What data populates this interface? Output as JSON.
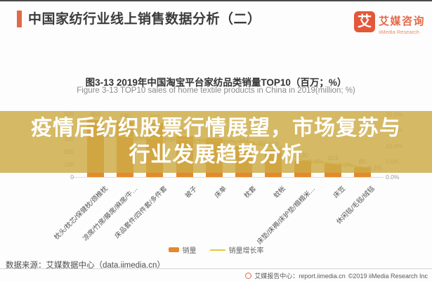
{
  "header": {
    "title": "中国家纺行业线上销售数据分析（二）",
    "logo_glyph": "艾",
    "logo_cn": "艾媒咨询",
    "logo_en": "iiMedia Research"
  },
  "figure": {
    "title_cn": "图3-13 2019年中国淘宝平台家纺品类销量TOP10（百万；%）",
    "title_en": "Figure 3-13 TOP10 sales of home textile products in China in 2019(million; %)"
  },
  "overlay": {
    "line1": "疫情后纺织股票行情展望，市场复苏与",
    "line2": "行业发展趋势分析"
  },
  "legend": {
    "bar_label": "销量",
    "line_label": "销量增长率"
  },
  "source": "数据来源：艾媒数据中心（data.iimedia.cn）",
  "footer": {
    "report_center": "艾媒报告中心：report.iimedia.cn",
    "copyright": "©2019  iiMedia Research Inc"
  },
  "colors": {
    "accent_orange": "#de6a48",
    "logo_orange": "#e4583a",
    "bar_orange": "#e6882c",
    "line_yellow": "#e9c73d",
    "overlay_band": "rgba(205,172,70,0.84)",
    "overlay_text": "#ffffff"
  },
  "chart_data": {
    "type": "bar",
    "title": "图3-13 2019年中国淘宝平台家纺品类销量TOP10（百万；%）",
    "subtitle": "Figure 3-13 TOP10 sales of home textile products in China in 2019(million; %)",
    "categories": [
      "枕头/枕芯/保健枕/颈椎枕",
      "凉席/竹席/藤席/麻席/牛…",
      "床品套件/四件套/多件套",
      "被子",
      "床单",
      "枕套",
      "蚊帐",
      "床垫/床褥/床护垫/榻榻米…",
      "床笠",
      "休闲毯/毛毯/绒毯"
    ],
    "series": [
      {
        "name": "销量",
        "type": "bar",
        "unit": "百万",
        "values": [
          450,
          440,
          427,
          325,
          303,
          244,
          219,
          130,
          103,
          80
        ]
      },
      {
        "name": "销量增长率",
        "type": "line",
        "unit": "%",
        "values": [
          13.6,
          12.9,
          12.3,
          11.9,
          11.6,
          11.3,
          9.6,
          5.4,
          4.3,
          3.3
        ]
      }
    ],
    "left_axis": {
      "ticks": [
        0,
        100,
        200,
        300,
        400,
        500
      ],
      "max": 500
    },
    "right_axis": {
      "ticks": [
        "0.0%",
        "5.0%",
        "10.0%",
        "15.0%",
        "20.0%"
      ],
      "max": 20
    },
    "legend_position": "bottom",
    "grid": false
  }
}
